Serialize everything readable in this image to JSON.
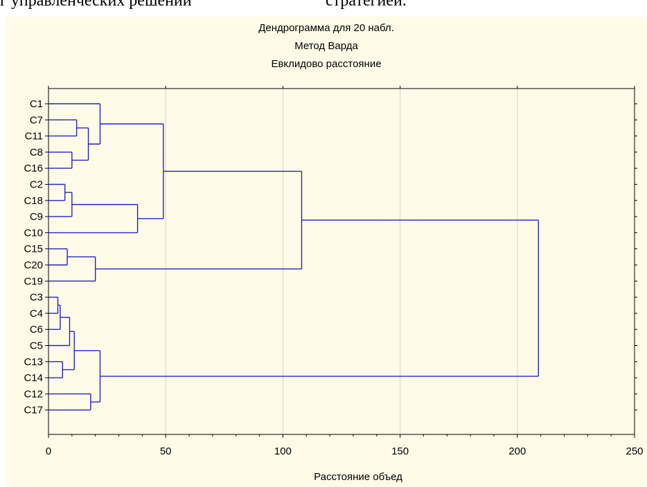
{
  "page_fragment": {
    "left_text": "г управленческих решений",
    "right_text": "стратегией."
  },
  "chart_data": {
    "type": "dendrogram",
    "title": "Дендрограмма для 20 набл.",
    "subtitle1": "Метод Варда",
    "subtitle2": "Евклидово расстояние",
    "xlabel": "Расстояние объед",
    "ylabel": "",
    "xlim": [
      0,
      250
    ],
    "xticks": [
      0,
      50,
      100,
      150,
      200,
      250
    ],
    "grid": "vertical",
    "line_color": "#2222cc",
    "leaves": [
      "C1",
      "C7",
      "C11",
      "C8",
      "C16",
      "C2",
      "C18",
      "C9",
      "C10",
      "C15",
      "C20",
      "C19",
      "C3",
      "C4",
      "C6",
      "C5",
      "C13",
      "C14",
      "C12",
      "C17"
    ],
    "merges": [
      {
        "a": "C3",
        "b": "C4",
        "height": 4
      },
      {
        "a": "m0",
        "b": "C6",
        "height": 5
      },
      {
        "a": "m1",
        "b": "C5",
        "height": 9
      },
      {
        "a": "C13",
        "b": "C14",
        "height": 6
      },
      {
        "a": "m2",
        "b": "m3",
        "height": 11
      },
      {
        "a": "C12",
        "b": "C17",
        "height": 18
      },
      {
        "a": "m4",
        "b": "m5",
        "height": 22
      },
      {
        "a": "C2",
        "b": "C18",
        "height": 7
      },
      {
        "a": "m7",
        "b": "C9",
        "height": 10
      },
      {
        "a": "m8",
        "b": "C10",
        "height": 38
      },
      {
        "a": "C8",
        "b": "C16",
        "height": 10
      },
      {
        "a": "C7",
        "b": "C11",
        "height": 12
      },
      {
        "a": "m11",
        "b": "m10",
        "height": 17
      },
      {
        "a": "C1",
        "b": "m12",
        "height": 22
      },
      {
        "a": "m13",
        "b": "m9",
        "height": 49
      },
      {
        "a": "C15",
        "b": "C20",
        "height": 8
      },
      {
        "a": "m15",
        "b": "C19",
        "height": 20
      },
      {
        "a": "m14",
        "b": "m16",
        "height": 108
      },
      {
        "a": "m17",
        "b": "m6",
        "height": 209
      }
    ]
  }
}
